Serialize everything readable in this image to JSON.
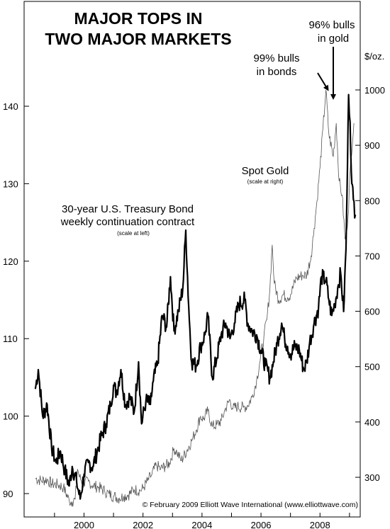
{
  "chart_data": {
    "type": "line",
    "title_line1": "MAJOR TOPS IN",
    "title_line2": "TWO MAJOR MARKETS",
    "x_ticks": [
      "2000",
      "2002",
      "2004",
      "2006",
      "2008"
    ],
    "left_axis": {
      "ticks": [
        "90",
        "100",
        "110",
        "120",
        "130",
        "140"
      ],
      "ylim": [
        89,
        145
      ]
    },
    "right_axis": {
      "unit": "$/oz.",
      "ticks": [
        "300",
        "400",
        "500",
        "600",
        "700",
        "800",
        "900",
        "1000"
      ],
      "ylim": [
        240,
        1060
      ]
    },
    "xlim": [
      1998.2,
      2009.5
    ],
    "series": [
      {
        "name": "30-year U.S. Treasury Bond weekly continuation contract",
        "axis": "left",
        "note": "(scale at left)",
        "points": [
          [
            1998.35,
            103.5
          ],
          [
            1998.45,
            106.0
          ],
          [
            1998.6,
            100.0
          ],
          [
            1998.75,
            101.5
          ],
          [
            1998.9,
            96.0
          ],
          [
            1999.05,
            94.0
          ],
          [
            1999.2,
            95.5
          ],
          [
            1999.35,
            93.0
          ],
          [
            1999.5,
            91.0
          ],
          [
            1999.6,
            93.5
          ],
          [
            1999.75,
            91.5
          ],
          [
            1999.87,
            89.3
          ],
          [
            2000.0,
            92.5
          ],
          [
            2000.15,
            94.0
          ],
          [
            2000.3,
            93.5
          ],
          [
            2000.45,
            95.5
          ],
          [
            2000.6,
            97.5
          ],
          [
            2000.75,
            99.0
          ],
          [
            2000.9,
            101.5
          ],
          [
            2001.0,
            104.0
          ],
          [
            2001.1,
            103.0
          ],
          [
            2001.25,
            106.0
          ],
          [
            2001.4,
            101.5
          ],
          [
            2001.55,
            102.5
          ],
          [
            2001.7,
            100.5
          ],
          [
            2001.85,
            107.0
          ],
          [
            2001.95,
            99.0
          ],
          [
            2002.1,
            102.0
          ],
          [
            2002.25,
            101.5
          ],
          [
            2002.35,
            104.5
          ],
          [
            2002.5,
            107.0
          ],
          [
            2002.65,
            113.0
          ],
          [
            2002.8,
            111.5
          ],
          [
            2002.93,
            118.0
          ],
          [
            2003.05,
            111.0
          ],
          [
            2003.2,
            113.5
          ],
          [
            2003.35,
            116.5
          ],
          [
            2003.45,
            124.0
          ],
          [
            2003.55,
            114.0
          ],
          [
            2003.65,
            107.0
          ],
          [
            2003.8,
            106.5
          ],
          [
            2003.95,
            109.0
          ],
          [
            2004.1,
            110.5
          ],
          [
            2004.2,
            113.0
          ],
          [
            2004.35,
            105.0
          ],
          [
            2004.5,
            107.5
          ],
          [
            2004.65,
            110.5
          ],
          [
            2004.8,
            112.0
          ],
          [
            2004.95,
            110.0
          ],
          [
            2005.1,
            112.0
          ],
          [
            2005.25,
            114.5
          ],
          [
            2005.45,
            115.0
          ],
          [
            2005.55,
            112.0
          ],
          [
            2005.7,
            111.0
          ],
          [
            2005.85,
            110.5
          ],
          [
            2006.0,
            108.5
          ],
          [
            2006.15,
            106.5
          ],
          [
            2006.3,
            105.0
          ],
          [
            2006.42,
            107.0
          ],
          [
            2006.55,
            109.5
          ],
          [
            2006.7,
            112.0
          ],
          [
            2006.8,
            110.0
          ],
          [
            2006.9,
            109.0
          ],
          [
            2007.0,
            108.0
          ],
          [
            2007.15,
            109.0
          ],
          [
            2007.3,
            108.5
          ],
          [
            2007.45,
            106.0
          ],
          [
            2007.55,
            107.0
          ],
          [
            2007.65,
            109.5
          ],
          [
            2007.8,
            112.0
          ],
          [
            2007.95,
            114.0
          ],
          [
            2008.05,
            118.0
          ],
          [
            2008.2,
            117.5
          ],
          [
            2008.3,
            115.0
          ],
          [
            2008.4,
            113.0
          ],
          [
            2008.5,
            114.5
          ],
          [
            2008.6,
            116.5
          ],
          [
            2008.7,
            118.5
          ],
          [
            2008.8,
            113.5
          ],
          [
            2008.88,
            121.5
          ],
          [
            2008.93,
            132.0
          ],
          [
            2008.97,
            141.5
          ],
          [
            2009.02,
            138.0
          ],
          [
            2009.08,
            130.0
          ],
          [
            2009.13,
            128.0
          ],
          [
            2009.2,
            126.0
          ]
        ]
      },
      {
        "name": "Spot Gold",
        "axis": "right",
        "note": "(scale at right)",
        "points": [
          [
            1998.35,
            298
          ],
          [
            1998.55,
            294
          ],
          [
            1998.75,
            296
          ],
          [
            1998.9,
            288
          ],
          [
            1999.1,
            287
          ],
          [
            1999.3,
            282
          ],
          [
            1999.5,
            258
          ],
          [
            1999.6,
            256
          ],
          [
            1999.7,
            260
          ],
          [
            1999.78,
            315
          ],
          [
            1999.85,
            300
          ],
          [
            2000.0,
            288
          ],
          [
            2000.15,
            293
          ],
          [
            2000.3,
            285
          ],
          [
            2000.5,
            282
          ],
          [
            2000.7,
            275
          ],
          [
            2000.85,
            270
          ],
          [
            2001.0,
            266
          ],
          [
            2001.2,
            262
          ],
          [
            2001.35,
            266
          ],
          [
            2001.5,
            268
          ],
          [
            2001.7,
            278
          ],
          [
            2001.9,
            276
          ],
          [
            2002.0,
            280
          ],
          [
            2002.15,
            293
          ],
          [
            2002.3,
            305
          ],
          [
            2002.45,
            322
          ],
          [
            2002.6,
            315
          ],
          [
            2002.75,
            320
          ],
          [
            2002.9,
            326
          ],
          [
            2003.05,
            352
          ],
          [
            2003.15,
            345
          ],
          [
            2003.3,
            330
          ],
          [
            2003.5,
            350
          ],
          [
            2003.65,
            366
          ],
          [
            2003.8,
            385
          ],
          [
            2003.95,
            410
          ],
          [
            2004.05,
            405
          ],
          [
            2004.2,
            420
          ],
          [
            2004.35,
            392
          ],
          [
            2004.5,
            395
          ],
          [
            2004.65,
            402
          ],
          [
            2004.8,
            425
          ],
          [
            2004.95,
            440
          ],
          [
            2005.05,
            424
          ],
          [
            2005.2,
            428
          ],
          [
            2005.4,
            426
          ],
          [
            2005.55,
            430
          ],
          [
            2005.7,
            445
          ],
          [
            2005.85,
            475
          ],
          [
            2005.95,
            505
          ],
          [
            2006.1,
            555
          ],
          [
            2006.2,
            585
          ],
          [
            2006.3,
            640
          ],
          [
            2006.38,
            720
          ],
          [
            2006.45,
            650
          ],
          [
            2006.6,
            620
          ],
          [
            2006.75,
            630
          ],
          [
            2006.9,
            625
          ],
          [
            2007.0,
            630
          ],
          [
            2007.2,
            660
          ],
          [
            2007.4,
            665
          ],
          [
            2007.55,
            665
          ],
          [
            2007.7,
            700
          ],
          [
            2007.8,
            750
          ],
          [
            2007.9,
            800
          ],
          [
            2008.0,
            860
          ],
          [
            2008.1,
            930
          ],
          [
            2008.2,
            1000
          ],
          [
            2008.3,
            920
          ],
          [
            2008.45,
            880
          ],
          [
            2008.55,
            940
          ],
          [
            2008.65,
            835
          ],
          [
            2008.75,
            810
          ],
          [
            2008.85,
            730
          ],
          [
            2008.95,
            770
          ],
          [
            2009.05,
            880
          ],
          [
            2009.15,
            940
          ]
        ]
      }
    ],
    "annotations": {
      "bond_label_line1": "30-year U.S. Treasury Bond",
      "bond_label_line2": "weekly continuation contract",
      "bond_note": "(scale at left)",
      "gold_label": "Spot Gold",
      "gold_note": "(scale at right)",
      "bonds_callout_line1": "99% bulls",
      "bonds_callout_line2": "in bonds",
      "gold_callout_line1": "96% bulls",
      "gold_callout_line2": "in gold"
    },
    "copyright": "© February 2009 Elliott Wave International (www.elliottwave.com)"
  }
}
